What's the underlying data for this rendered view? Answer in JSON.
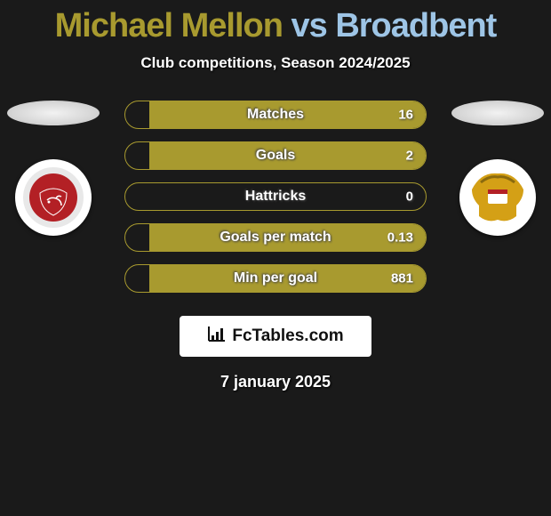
{
  "title": {
    "player1": "Michael Mellon",
    "vs": " vs ",
    "player2": "Broadbent",
    "color1": "#a89a2f",
    "color2": "#9ec5e6"
  },
  "subtitle": "Club competitions, Season 2024/2025",
  "background_color": "#1a1a1a",
  "player1": {
    "ellipse_color": "#e6e6e6",
    "crest_bg": "#ffffff",
    "crest_main": "#b32025",
    "crest_ring": "#e8e8e8",
    "crest_name": "Morecambe FC"
  },
  "player2": {
    "ellipse_color": "#e6e6e6",
    "crest_bg": "#ffffff",
    "crest_main": "#d4a016",
    "crest_accent": "#b32025",
    "crest_name": "Doncaster Rovers"
  },
  "bars": {
    "border_color": "#a89a2f",
    "fill_color": "#a89a2f",
    "bg_color": "transparent",
    "label_color": "#ffffff",
    "label_fontsize": 16,
    "value_fontsize": 15,
    "height": 32,
    "gap": 14,
    "items": [
      {
        "label": "Matches",
        "left_pct": 0,
        "right_pct": 92,
        "right_value": "16"
      },
      {
        "label": "Goals",
        "left_pct": 0,
        "right_pct": 92,
        "right_value": "2"
      },
      {
        "label": "Hattricks",
        "left_pct": 0,
        "right_pct": 0,
        "right_value": "0"
      },
      {
        "label": "Goals per match",
        "left_pct": 0,
        "right_pct": 92,
        "right_value": "0.13"
      },
      {
        "label": "Min per goal",
        "left_pct": 0,
        "right_pct": 92,
        "right_value": "881"
      }
    ]
  },
  "logo": {
    "text": "FcTables.com",
    "icon": "chart-bars-icon"
  },
  "date": "7 january 2025"
}
